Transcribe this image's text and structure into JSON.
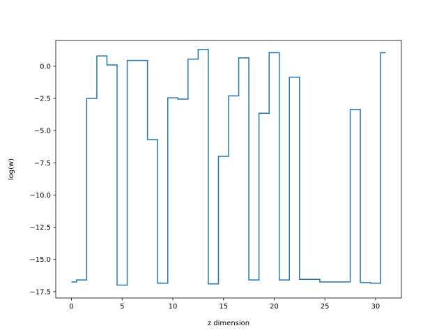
{
  "chart_data": {
    "type": "line",
    "drawstyle": "steps-mid",
    "xlabel": "z dimension",
    "ylabel": "log(w)",
    "xlim": [
      -1.55,
      32.55
    ],
    "ylim": [
      -18.0,
      2.0
    ],
    "xticks": [
      0,
      5,
      10,
      15,
      20,
      25,
      30
    ],
    "xtick_labels": [
      "0",
      "5",
      "10",
      "15",
      "20",
      "25",
      "30"
    ],
    "yticks": [
      -17.5,
      -15.0,
      -12.5,
      -10.0,
      -7.5,
      -5.0,
      -2.5,
      0.0
    ],
    "ytick_labels": [
      "−17.5",
      "−15.0",
      "−12.5",
      "−10.0",
      "−7.5",
      "−5.0",
      "−2.5",
      "0.0"
    ],
    "grid": false,
    "legend": "none",
    "series": [
      {
        "color": "#1f77b4",
        "x": [
          0,
          1,
          2,
          3,
          4,
          5,
          6,
          7,
          8,
          9,
          10,
          11,
          12,
          13,
          14,
          15,
          16,
          17,
          18,
          19,
          20,
          21,
          22,
          23,
          24,
          25,
          26,
          27,
          28,
          29,
          30,
          31
        ],
        "y": [
          -16.75,
          -16.6,
          -2.5,
          0.8,
          0.1,
          -17.0,
          0.45,
          0.45,
          -5.7,
          -16.85,
          -2.45,
          -2.55,
          0.55,
          1.3,
          -16.9,
          -7.0,
          -2.3,
          0.65,
          -16.6,
          -3.65,
          1.05,
          -16.6,
          -0.85,
          -16.55,
          -16.55,
          -16.75,
          -16.75,
          -16.75,
          -3.35,
          -16.8,
          -16.85,
          1.05
        ]
      }
    ]
  }
}
